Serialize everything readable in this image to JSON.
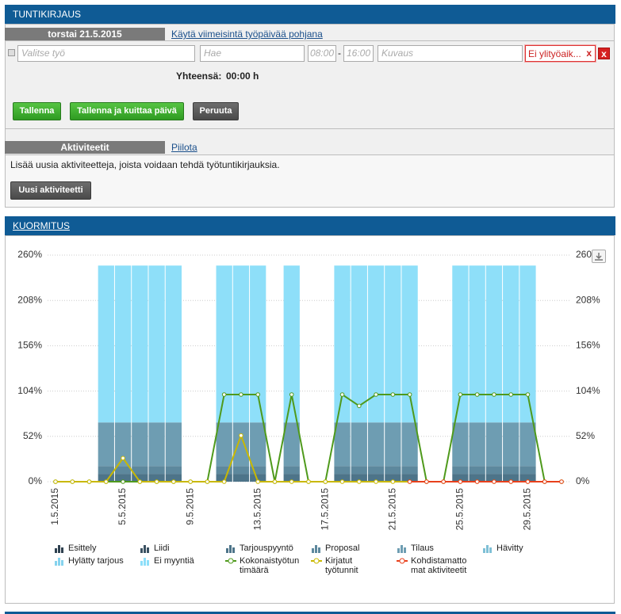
{
  "tuntikirjaus": {
    "title": "TUNTIKIRJAUS",
    "date": "torstai 21.5.2015",
    "copy_link": "Käytä viimeisintä työpäivää pohjana",
    "form": {
      "job_placeholder": "Valitse työ",
      "search_placeholder": "Hae",
      "start_time": "08:00",
      "separator": "-",
      "end_time": "16:00",
      "description_placeholder": "Kuvaus",
      "overtime": "Ei ylityöaik..."
    },
    "total_label": "Yhteensä:",
    "total_value": "00:00 h",
    "buttons": [
      "Tallenna",
      "Tallenna ja kuittaa päivä",
      "Peruuta"
    ],
    "activities": {
      "title": "Aktiviteetit",
      "hide_link": "Piilota",
      "text": "Lisää uusia aktiviteetteja, joista voidaan tehdä työtuntikirjauksia.",
      "button": "Uusi aktiviteetti"
    }
  },
  "kuormitus": {
    "title": "KUORMITUS"
  },
  "chart_data": {
    "type": "combo",
    "categories": [
      "1.5.2015",
      null,
      null,
      null,
      "5.5.2015",
      null,
      null,
      null,
      "9.5.2015",
      null,
      null,
      null,
      "13.5.2015",
      null,
      null,
      null,
      "17.5.2015",
      null,
      null,
      null,
      "21.5.2015",
      null,
      null,
      null,
      "25.5.2015",
      null,
      null,
      null,
      "29.5.2015",
      null,
      null
    ],
    "ylim": [
      0,
      260
    ],
    "yticks": [
      {
        "value": 0,
        "label": "0%"
      },
      {
        "value": 52,
        "label": "52%"
      },
      {
        "value": 104,
        "label": "104%"
      },
      {
        "value": 156,
        "label": "156%"
      },
      {
        "value": 208,
        "label": "208%"
      },
      {
        "value": 260,
        "label": "260%"
      }
    ],
    "y2lim": [
      0,
      260
    ],
    "y2ticks": [
      {
        "value": 0,
        "label": "0%"
      },
      {
        "value": 52,
        "label": "52%"
      },
      {
        "value": 104,
        "label": "104%"
      },
      {
        "value": 156,
        "label": "156%"
      },
      {
        "value": 208,
        "label": "208%"
      },
      {
        "value": 260,
        "label": "260%"
      }
    ],
    "grid": true,
    "series": [
      {
        "name": "Esittely",
        "type": "bar",
        "color": "#2f4150",
        "values": [
          0,
          0,
          0,
          0,
          0,
          0,
          0,
          0,
          0,
          0,
          0,
          0,
          0,
          0,
          0,
          0,
          0,
          0,
          0,
          0,
          0,
          0,
          0,
          0,
          0,
          0,
          0,
          0,
          0,
          0,
          0
        ]
      },
      {
        "name": "Liidi",
        "type": "bar",
        "color": "#3a5162",
        "values": [
          0,
          0,
          0,
          0,
          0,
          0,
          0,
          0,
          0,
          0,
          0,
          0,
          0,
          0,
          0,
          0,
          0,
          0,
          0,
          0,
          0,
          0,
          0,
          0,
          0,
          0,
          0,
          0,
          0,
          0,
          0
        ]
      },
      {
        "name": "Tarjouspyyntö",
        "type": "bar",
        "color": "#4d7489",
        "values": [
          0,
          0,
          0,
          9,
          9,
          9,
          9,
          9,
          0,
          0,
          9,
          9,
          9,
          0,
          9,
          0,
          0,
          9,
          9,
          9,
          9,
          9,
          0,
          0,
          9,
          9,
          9,
          9,
          9,
          0,
          0
        ]
      },
      {
        "name": "Proposal",
        "type": "bar",
        "color": "#5d889d",
        "values": [
          0,
          0,
          0,
          9,
          9,
          9,
          9,
          9,
          0,
          0,
          9,
          9,
          9,
          0,
          9,
          0,
          0,
          9,
          9,
          9,
          9,
          9,
          0,
          0,
          9,
          9,
          9,
          9,
          9,
          0,
          0
        ]
      },
      {
        "name": "Tilaus",
        "type": "bar",
        "color": "#6e9db2",
        "values": [
          0,
          0,
          0,
          50,
          50,
          50,
          50,
          50,
          0,
          0,
          50,
          50,
          50,
          0,
          50,
          0,
          0,
          50,
          50,
          50,
          50,
          50,
          0,
          0,
          50,
          50,
          50,
          50,
          50,
          0,
          0
        ]
      },
      {
        "name": "Hävitty",
        "type": "bar",
        "color": "#7fc0d6",
        "values": [
          0,
          0,
          0,
          0,
          0,
          0,
          0,
          0,
          0,
          0,
          0,
          0,
          0,
          0,
          0,
          0,
          0,
          0,
          0,
          0,
          0,
          0,
          0,
          0,
          0,
          0,
          0,
          0,
          0,
          0,
          0
        ]
      },
      {
        "name": "Hylätty tarjous",
        "type": "bar",
        "color": "#86d3ee",
        "values": [
          0,
          0,
          0,
          0,
          0,
          0,
          0,
          0,
          0,
          0,
          0,
          0,
          0,
          0,
          0,
          0,
          0,
          0,
          0,
          0,
          0,
          0,
          0,
          0,
          0,
          0,
          0,
          0,
          0,
          0,
          0
        ]
      },
      {
        "name": "Ei myyntiä",
        "type": "bar",
        "color": "#8edff9",
        "values": [
          0,
          0,
          0,
          180,
          180,
          180,
          180,
          180,
          0,
          0,
          180,
          180,
          180,
          0,
          180,
          0,
          0,
          180,
          180,
          180,
          180,
          180,
          0,
          0,
          180,
          180,
          180,
          180,
          180,
          0,
          0
        ]
      },
      {
        "name": "Kokonaistyötuntimäärä",
        "type": "line",
        "color": "#4f9a1c",
        "values": [
          0,
          0,
          0,
          0,
          0,
          0,
          0,
          0,
          0,
          0,
          100,
          100,
          100,
          0,
          100,
          0,
          0,
          100,
          87,
          100,
          100,
          100,
          0,
          0,
          100,
          100,
          100,
          100,
          100,
          0,
          0
        ]
      },
      {
        "name": "Kirjatut työtunnit",
        "type": "line",
        "color": "#c9b800",
        "values": [
          0,
          0,
          0,
          0,
          27,
          0,
          0,
          0,
          0,
          0,
          0,
          53,
          0,
          0,
          0,
          0,
          0,
          0,
          0,
          0,
          0,
          0,
          0,
          0,
          0,
          0,
          0,
          0,
          0,
          0,
          0
        ]
      },
      {
        "name": "Kohdistamattomat aktiviteetit",
        "type": "line",
        "color": "#e8401c",
        "values": [
          null,
          null,
          null,
          null,
          null,
          null,
          null,
          null,
          null,
          null,
          null,
          null,
          null,
          null,
          null,
          null,
          null,
          null,
          null,
          null,
          null,
          0,
          0,
          0,
          0,
          0,
          0,
          0,
          0,
          0,
          0
        ]
      }
    ]
  }
}
